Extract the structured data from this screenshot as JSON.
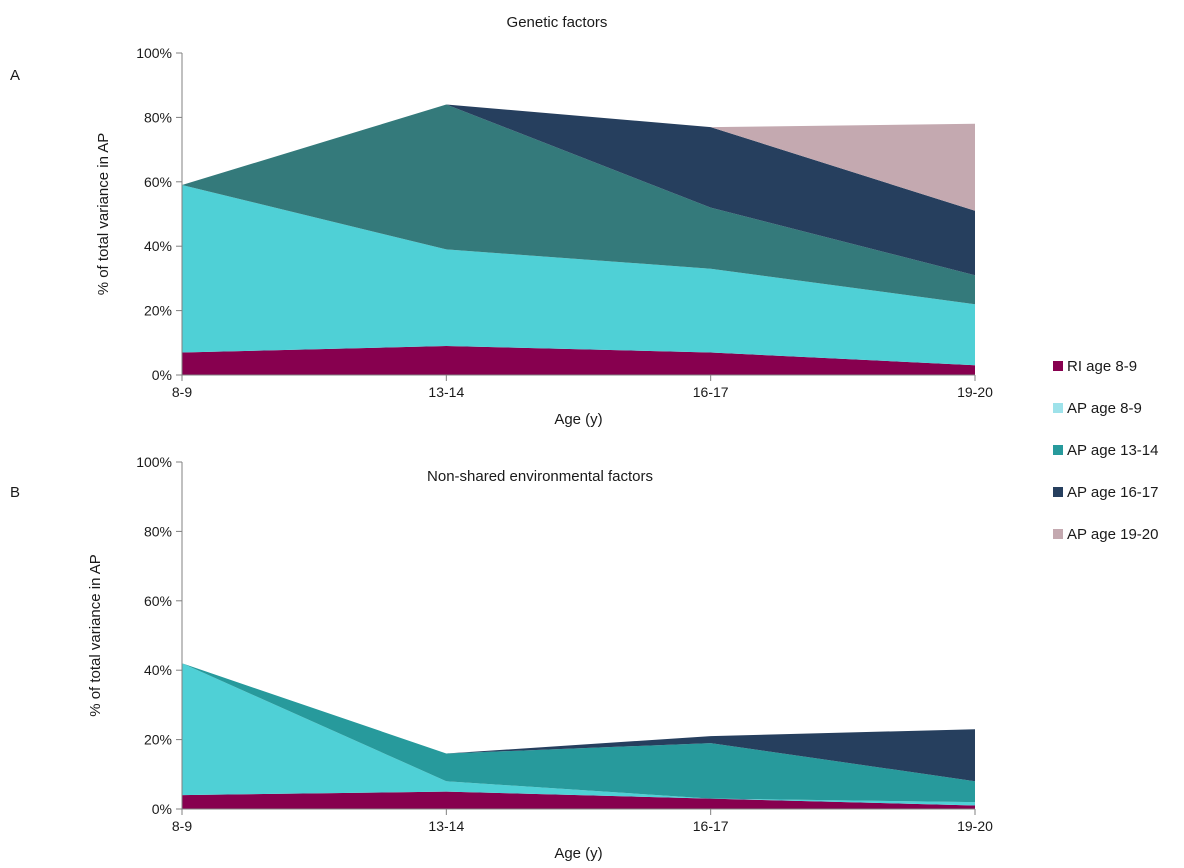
{
  "chart_data": [
    {
      "type": "area",
      "panel": "A",
      "title": "Genetic factors",
      "xlabel": "Age (y)",
      "ylabel": "% of total variance in AP",
      "categories": [
        "8-9",
        "13-14",
        "16-17",
        "19-20"
      ],
      "ylim": [
        0,
        100
      ],
      "yticks": [
        "0%",
        "20%",
        "40%",
        "60%",
        "80%",
        "100%"
      ],
      "stacked": true,
      "series": [
        {
          "name": "RI age 8-9",
          "values": [
            7,
            9,
            7,
            3
          ]
        },
        {
          "name": "AP age 8-9",
          "values": [
            52,
            30,
            26,
            19
          ]
        },
        {
          "name": "AP age 13-14",
          "values": [
            0,
            45,
            19,
            9
          ]
        },
        {
          "name": "AP age 16-17",
          "values": [
            null,
            0,
            25,
            20
          ]
        },
        {
          "name": "AP age 19-20",
          "values": [
            null,
            null,
            0,
            27
          ]
        }
      ],
      "series_colors": [
        "#87004f",
        "#4fd0d6",
        "#347a7b",
        "#263f5e",
        "#c4a9b0"
      ]
    },
    {
      "type": "area",
      "panel": "B",
      "title": "Non-shared environmental factors",
      "xlabel": "Age (y)",
      "ylabel": "% of total variance in AP",
      "categories": [
        "8-9",
        "13-14",
        "16-17",
        "19-20"
      ],
      "ylim": [
        0,
        100
      ],
      "yticks": [
        "0%",
        "20%",
        "40%",
        "60%",
        "80%",
        "100%"
      ],
      "stacked": true,
      "series": [
        {
          "name": "RI age 8-9",
          "values": [
            4,
            5,
            3,
            1
          ]
        },
        {
          "name": "AP age 8-9",
          "values": [
            38,
            3,
            0,
            1
          ]
        },
        {
          "name": "AP age 13-14",
          "values": [
            0,
            8,
            16,
            6
          ]
        },
        {
          "name": "AP age 16-17",
          "values": [
            null,
            0,
            2,
            15
          ]
        }
      ],
      "series_colors": [
        "#87004f",
        "#4fd0d6",
        "#279a9c",
        "#263f5e"
      ]
    }
  ],
  "legend": {
    "items": [
      {
        "label": "RI age 8-9",
        "color": "#87004f"
      },
      {
        "label": "AP age 8-9",
        "color": "#9ee2ea"
      },
      {
        "label": "AP age 13-14",
        "color": "#279a9c"
      },
      {
        "label": "AP age 16-17",
        "color": "#263f5e"
      },
      {
        "label": "AP age 19-20",
        "color": "#c4a9b0"
      }
    ]
  }
}
